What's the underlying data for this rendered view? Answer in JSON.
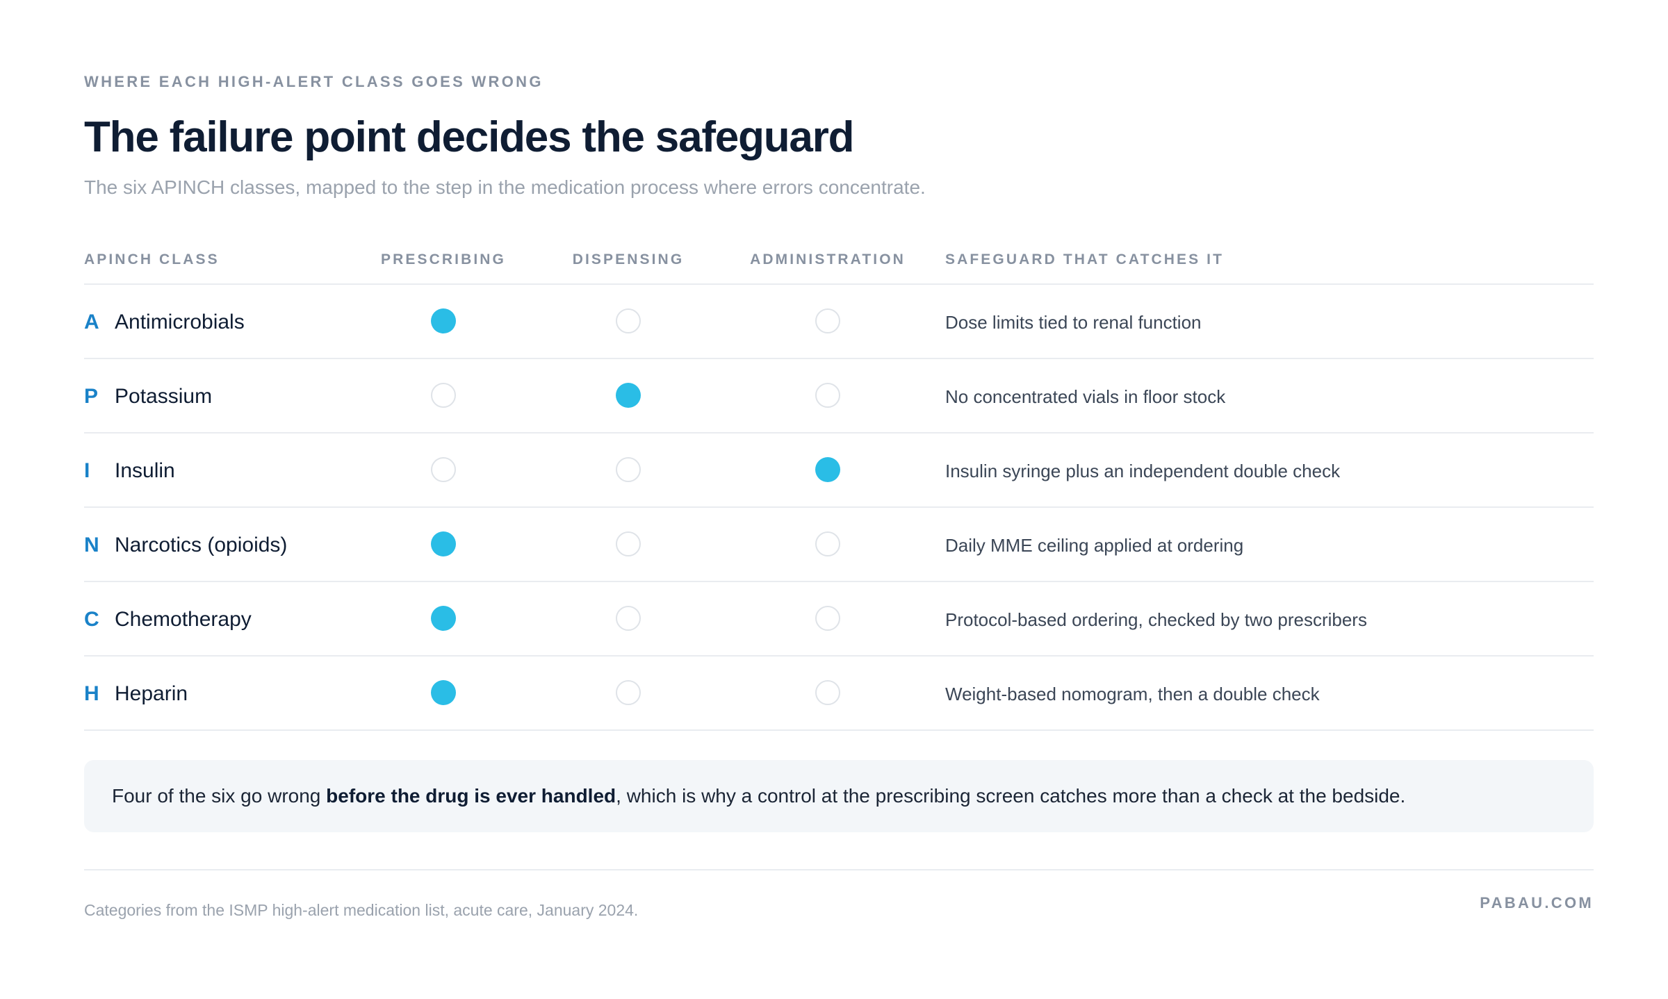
{
  "header": {
    "eyebrow": "WHERE EACH HIGH-ALERT CLASS GOES WRONG",
    "title": "The failure point decides the safeguard",
    "subtitle": "The six APINCH classes, mapped to the step in the medication process where errors concentrate."
  },
  "table": {
    "columns": {
      "class": "APINCH CLASS",
      "prescribing": "PRESCRIBING",
      "dispensing": "DISPENSING",
      "administration": "ADMINISTRATION",
      "safeguard": "SAFEGUARD THAT CATCHES IT"
    },
    "rows": [
      {
        "letter": "A",
        "name": "Antimicrobials",
        "prescribing": true,
        "dispensing": false,
        "administration": false,
        "safeguard": "Dose limits tied to renal function"
      },
      {
        "letter": "P",
        "name": "Potassium",
        "prescribing": false,
        "dispensing": true,
        "administration": false,
        "safeguard": "No concentrated vials in floor stock"
      },
      {
        "letter": "I",
        "name": "Insulin",
        "prescribing": false,
        "dispensing": false,
        "administration": true,
        "safeguard": "Insulin syringe plus an independent double check"
      },
      {
        "letter": "N",
        "name": "Narcotics (opioids)",
        "prescribing": true,
        "dispensing": false,
        "administration": false,
        "safeguard": "Daily MME ceiling applied at ordering"
      },
      {
        "letter": "C",
        "name": "Chemotherapy",
        "prescribing": true,
        "dispensing": false,
        "administration": false,
        "safeguard": "Protocol-based ordering, checked by two prescribers"
      },
      {
        "letter": "H",
        "name": "Heparin",
        "prescribing": true,
        "dispensing": false,
        "administration": false,
        "safeguard": "Weight-based nomogram, then a double check"
      }
    ]
  },
  "callout": {
    "lead": "Four of the six go wrong ",
    "emphasis": "before the drug is ever handled",
    "tail": ", which is why a control at the prescribing screen catches more than a check at the bedside."
  },
  "footer": {
    "source": "Categories from the ISMP high-alert medication list, acute care, January 2024.",
    "brand": "PABAU.COM"
  },
  "colors": {
    "accent_letter": "#1a82c8",
    "dot_filled": "#2abde6",
    "dot_empty_border": "#dfe3e8",
    "title": "#0f1d33",
    "muted": "#8791a0"
  }
}
